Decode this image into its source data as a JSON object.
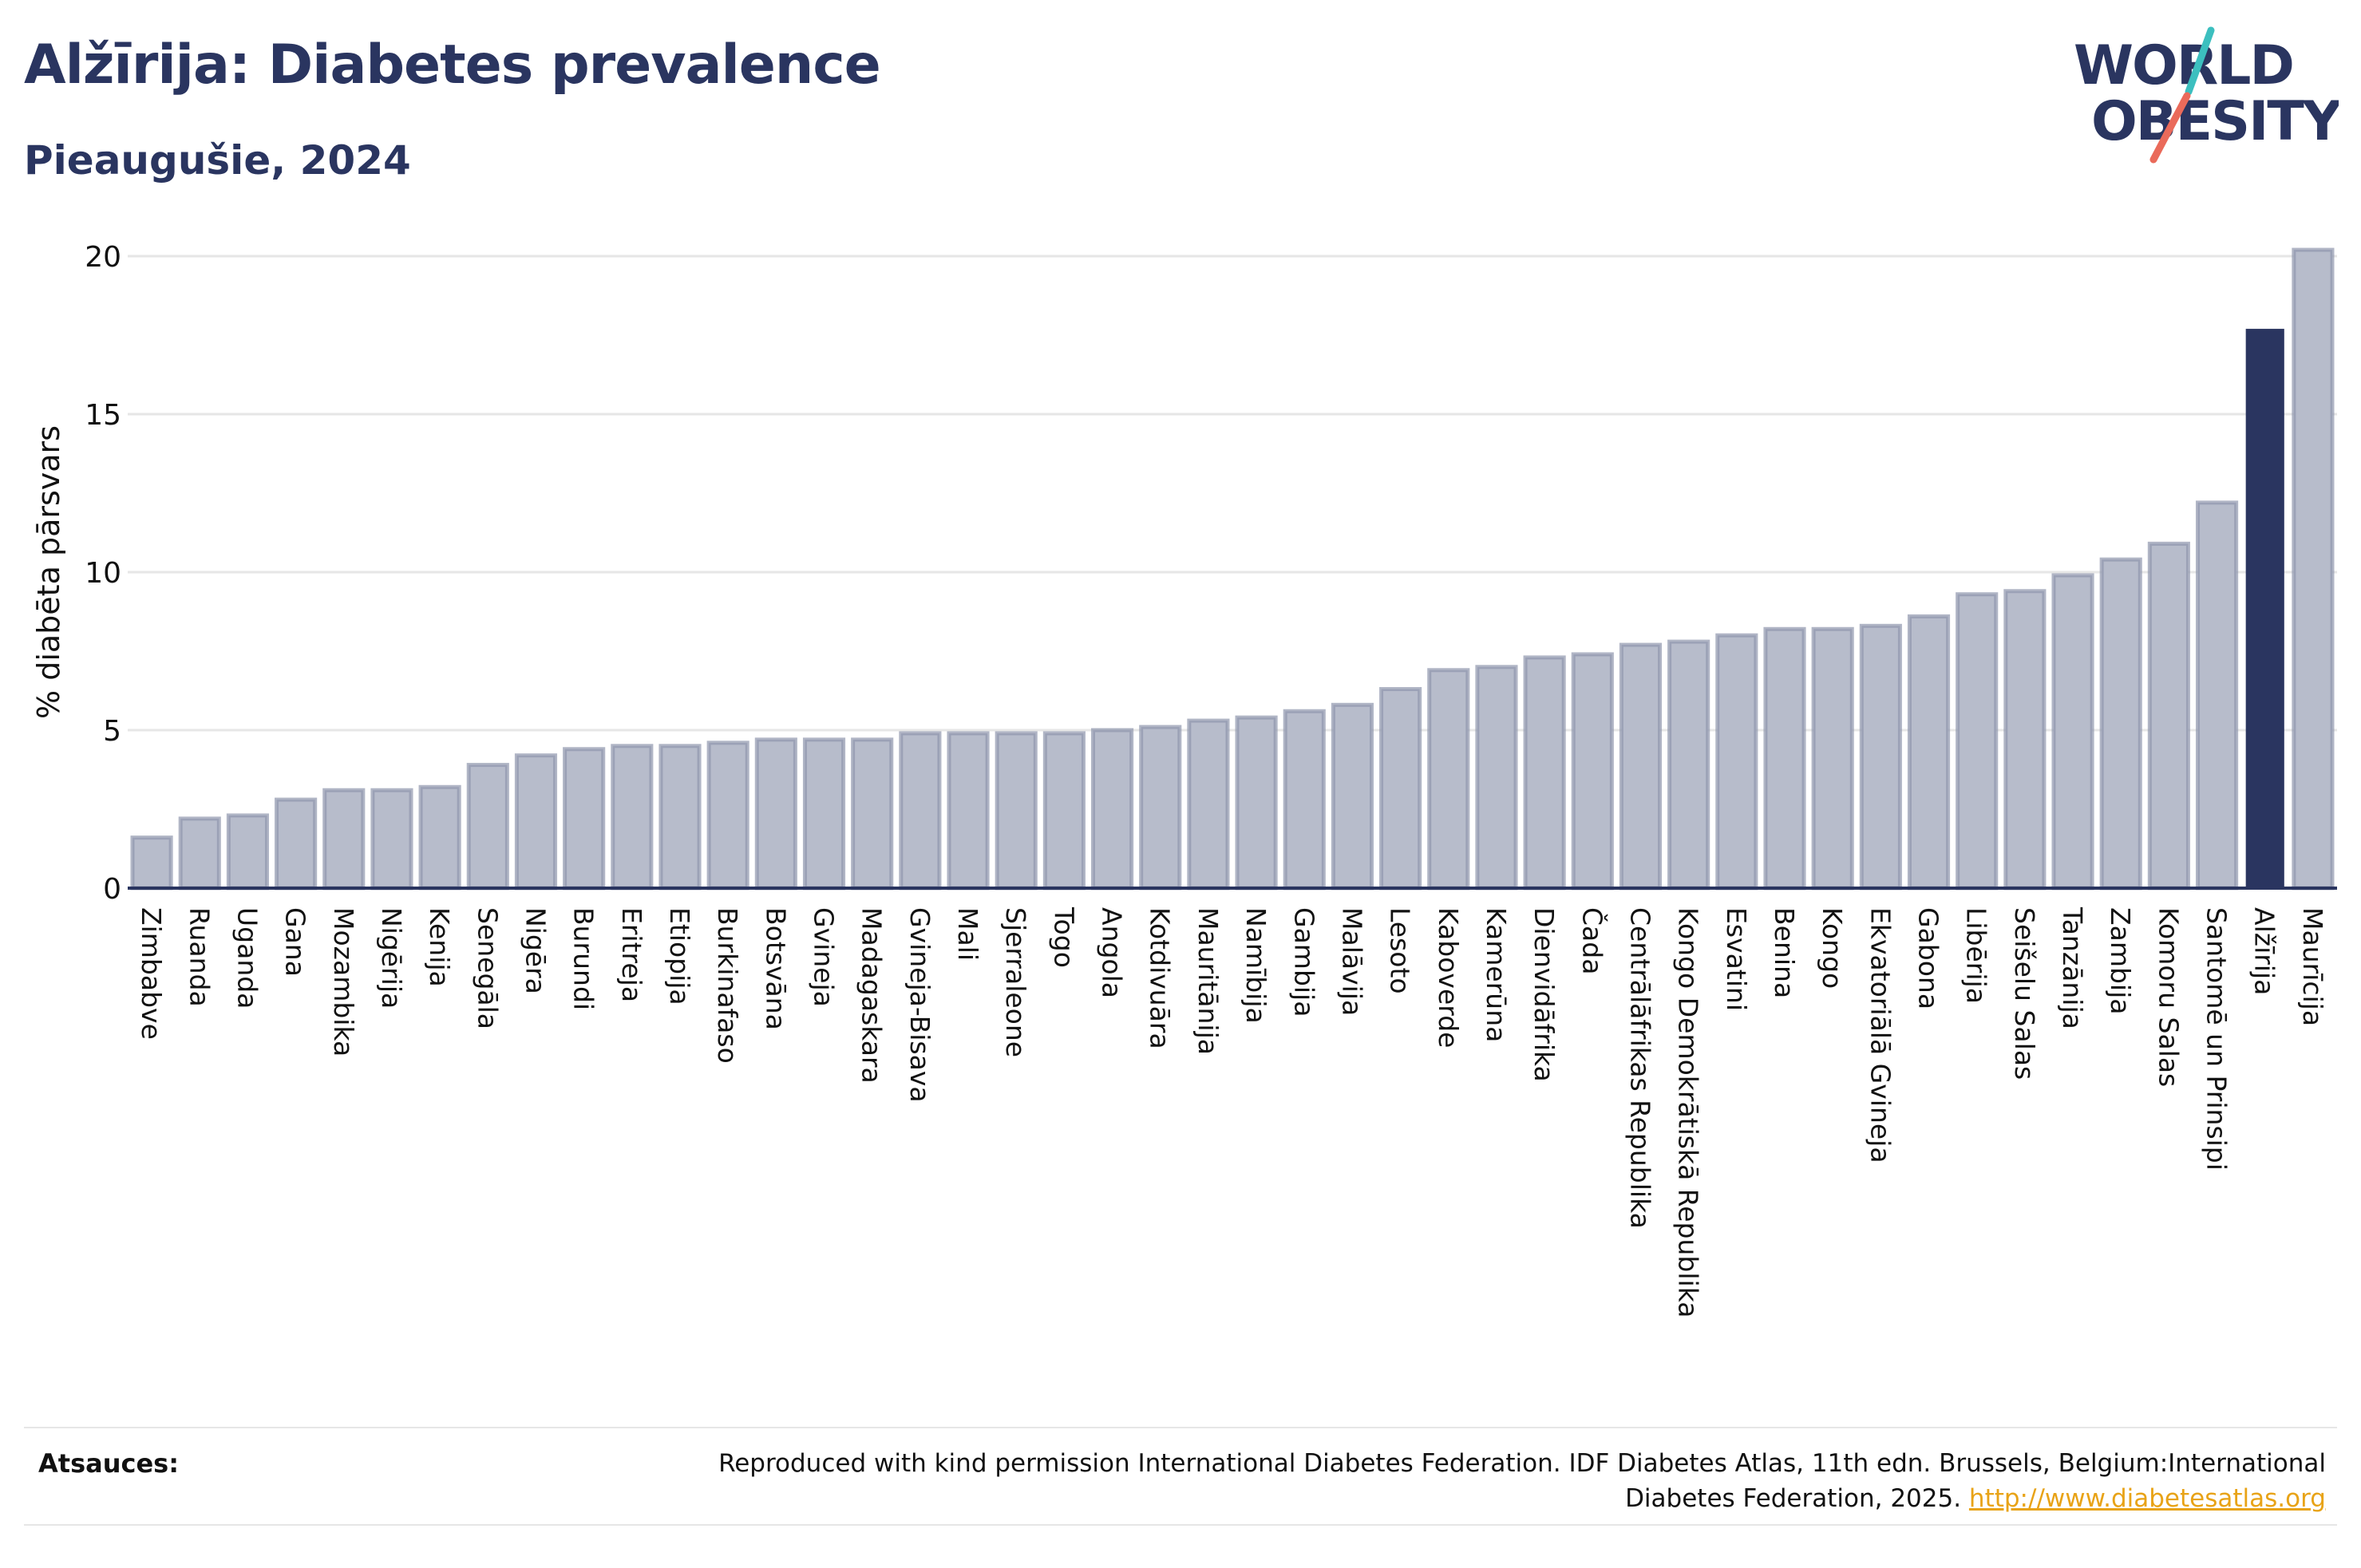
{
  "title": "Alžīrija: Diabetes prevalence",
  "subtitle": "Pieaugušie, 2024",
  "logo": {
    "line1": "WORLD",
    "line2": "OBESITY"
  },
  "colors": {
    "bar": "#b7bccb",
    "bar_stroke": "#8e95ad",
    "highlight": "#2a3560",
    "grid": "#e6e6e6",
    "text": "#2a3560",
    "link": "#e8a317"
  },
  "chart_data": {
    "type": "bar",
    "ylabel": "% diabēta pārsvars",
    "ylim": [
      0,
      20
    ],
    "yticks": [
      0,
      5,
      10,
      15,
      20
    ],
    "grid": true,
    "highlight": "Alžīrija",
    "categories": [
      "Zimbabve",
      "Ruanda",
      "Uganda",
      "Gana",
      "Mozambika",
      "Nigērija",
      "Kenija",
      "Senegāla",
      "Nigēra",
      "Burundi",
      "Eritreja",
      "Etiopija",
      "Burkinafaso",
      "Botsvāna",
      "Gvineja",
      "Madagaskara",
      "Gvineja-Bisava",
      "Mali",
      "Sjerraleone",
      "Togo",
      "Angola",
      "Kotdivuāra",
      "Mauritānija",
      "Namībija",
      "Gambija",
      "Malāvija",
      "Lesoto",
      "Kaboverde",
      "Kamerūna",
      "Dienvidāfrika",
      "Čada",
      "Centrālāfrikas Republika",
      "Kongo Demokrātiskā Republika",
      "Esvatini",
      "Benina",
      "Kongo",
      "Ekvatoriālā Gvineja",
      "Gabona",
      "Libērija",
      "Seišelu Salas",
      "Tanzānija",
      "Zambija",
      "Komoru Salas",
      "Santomē un Prinsipi",
      "Alžīrija",
      "Maurīcija"
    ],
    "values": [
      1.6,
      2.2,
      2.3,
      2.8,
      3.1,
      3.1,
      3.2,
      3.9,
      4.2,
      4.4,
      4.5,
      4.5,
      4.6,
      4.7,
      4.7,
      4.7,
      4.9,
      4.9,
      4.9,
      4.9,
      5.0,
      5.1,
      5.3,
      5.4,
      5.6,
      5.8,
      6.3,
      6.9,
      7.0,
      7.3,
      7.4,
      7.7,
      7.8,
      8.0,
      8.2,
      8.2,
      8.3,
      8.6,
      9.3,
      9.4,
      9.9,
      10.4,
      10.9,
      12.2,
      17.7,
      20.2
    ]
  },
  "footer": {
    "label": "Atsauces:",
    "text_line1": "Reproduced with kind permission International Diabetes Federation. IDF Diabetes Atlas, 11th edn. Brussels, Belgium:International",
    "text_line2": "Diabetes Federation, 2025. ",
    "link": "http://www.diabetesatlas.org"
  }
}
